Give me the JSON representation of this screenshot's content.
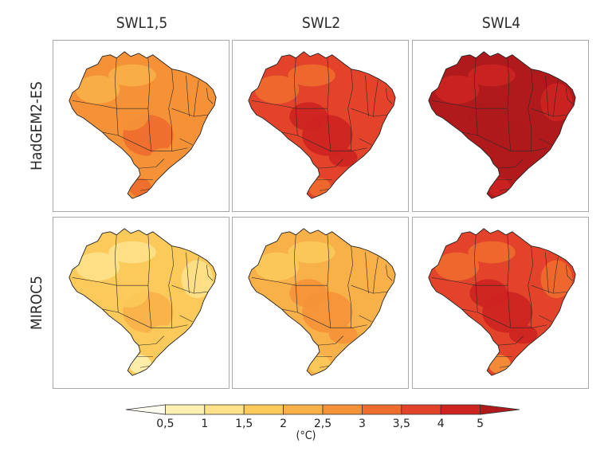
{
  "columns": [
    {
      "label": "SWL1,5"
    },
    {
      "label": "SWL2"
    },
    {
      "label": "SWL4"
    }
  ],
  "rows": [
    {
      "label": "HadGEM2-ES"
    },
    {
      "label": "MIROC5"
    }
  ],
  "panels": [
    {
      "row": 0,
      "col": 0,
      "base_level": 4.5,
      "south_level": 5.5,
      "northeast_level": 4.5
    },
    {
      "row": 0,
      "col": 1,
      "base_level": 7.0,
      "south_level": 6.0,
      "northeast_level": 6.5
    },
    {
      "row": 0,
      "col": 2,
      "base_level": 8.6,
      "south_level": 8.0,
      "northeast_level": 8.3
    },
    {
      "row": 1,
      "col": 0,
      "base_level": 2.5,
      "south_level": 0.5,
      "northeast_level": 1.5
    },
    {
      "row": 1,
      "col": 1,
      "base_level": 4.0,
      "south_level": 2.5,
      "northeast_level": 3.5
    },
    {
      "row": 1,
      "col": 2,
      "base_level": 7.0,
      "south_level": 4.5,
      "northeast_level": 5.5
    }
  ],
  "legend": {
    "unit": "(°C)",
    "tick_labels": [
      "0,5",
      "1",
      "1,5",
      "2",
      "2,5",
      "3",
      "3,5",
      "4",
      "5"
    ],
    "colors": [
      "#fffdf2",
      "#fff1b3",
      "#fde28a",
      "#fbca5a",
      "#f8b048",
      "#f59238",
      "#ee6d2d",
      "#e3432a",
      "#cd2321",
      "#b01a1c"
    ]
  }
}
